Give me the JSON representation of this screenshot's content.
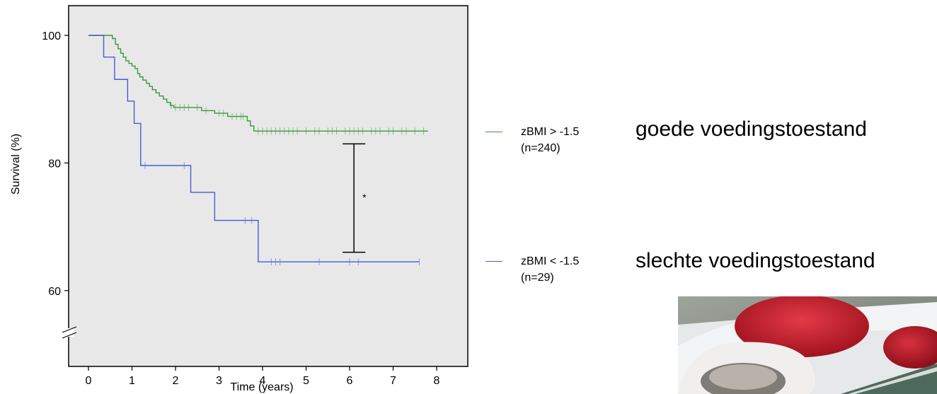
{
  "chart_data": {
    "type": "line",
    "subtype": "kaplan-meier survival curve",
    "xlabel": "Time (years)",
    "ylabel": "Survival (%)",
    "xlim": [
      -0.5,
      8.5
    ],
    "ylim": [
      51.5,
      105
    ],
    "x_ticks": [
      0,
      1,
      2,
      3,
      4,
      5,
      6,
      7,
      8
    ],
    "y_ticks": [
      60,
      80,
      100
    ],
    "y_axis_break": true,
    "background": "#e8e8e8",
    "grid": false,
    "series": [
      {
        "name": "zBMI > -1.5",
        "n_label": "(n=240)",
        "color": "#3a9a3a",
        "steps": [
          [
            0,
            100
          ],
          [
            0.4,
            100
          ],
          [
            0.55,
            99.5
          ],
          [
            0.62,
            98.6
          ],
          [
            0.68,
            97.9
          ],
          [
            0.74,
            97.2
          ],
          [
            0.8,
            96.6
          ],
          [
            0.86,
            96.0
          ],
          [
            0.93,
            95.6
          ],
          [
            1.0,
            95.2
          ],
          [
            1.07,
            94.8
          ],
          [
            1.13,
            94.0
          ],
          [
            1.18,
            93.5
          ],
          [
            1.25,
            93.0
          ],
          [
            1.33,
            92.5
          ],
          [
            1.4,
            92.0
          ],
          [
            1.47,
            91.5
          ],
          [
            1.55,
            91.0
          ],
          [
            1.63,
            90.5
          ],
          [
            1.72,
            90.0
          ],
          [
            1.8,
            89.5
          ],
          [
            1.88,
            89.0
          ],
          [
            1.96,
            88.7
          ],
          [
            2.6,
            88.2
          ],
          [
            2.9,
            87.8
          ],
          [
            3.2,
            87.3
          ],
          [
            3.65,
            86.6
          ],
          [
            3.72,
            85.8
          ],
          [
            3.8,
            85.0
          ],
          [
            7.8,
            85.0
          ]
        ],
        "censor": [
          1.9,
          2.0,
          2.1,
          2.2,
          2.3,
          2.5,
          2.7,
          3.0,
          3.1,
          3.3,
          3.4,
          3.5,
          3.55,
          3.9,
          4.0,
          4.1,
          4.2,
          4.3,
          4.4,
          4.5,
          4.6,
          4.7,
          4.8,
          5.0,
          5.2,
          5.3,
          5.5,
          5.6,
          5.7,
          5.9,
          6.0,
          6.1,
          6.2,
          6.3,
          6.5,
          6.6,
          6.7,
          6.9,
          7.0,
          7.2,
          7.3,
          7.5,
          7.7
        ]
      },
      {
        "name": "zBMI < -1.5",
        "n_label": "(n=29)",
        "color": "#4a5ad8",
        "steps": [
          [
            0,
            100
          ],
          [
            0.35,
            100
          ],
          [
            0.35,
            96.6
          ],
          [
            0.6,
            96.6
          ],
          [
            0.6,
            93.1
          ],
          [
            0.9,
            93.1
          ],
          [
            0.9,
            89.7
          ],
          [
            1.05,
            89.7
          ],
          [
            1.05,
            86.2
          ],
          [
            1.2,
            86.2
          ],
          [
            1.2,
            79.6
          ],
          [
            2.35,
            79.6
          ],
          [
            2.35,
            75.4
          ],
          [
            2.9,
            75.4
          ],
          [
            2.9,
            71.0
          ],
          [
            3.9,
            71.0
          ],
          [
            3.9,
            64.5
          ],
          [
            7.6,
            64.5
          ]
        ],
        "censor": [
          1.3,
          2.2,
          3.6,
          3.75,
          4.2,
          4.3,
          4.4,
          5.3,
          6.0,
          6.2,
          7.6
        ]
      }
    ],
    "significance_bar": {
      "x": 6.1,
      "y_low": 66,
      "y_high": 83,
      "label": "*"
    }
  },
  "annotations": {
    "good": "goede voedingstoestand",
    "bad": "slechte voedingstoestand"
  },
  "legend_placement": "right of plot"
}
